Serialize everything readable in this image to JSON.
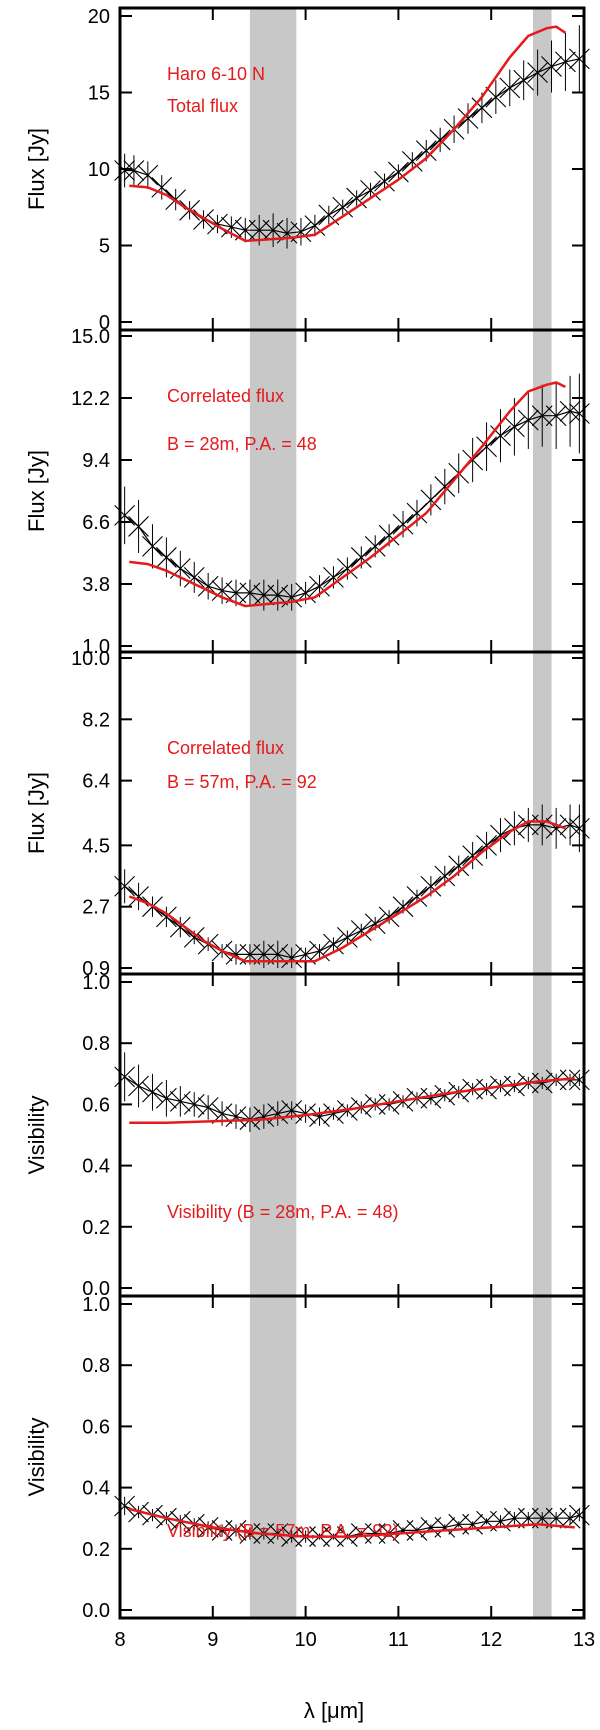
{
  "colors": {
    "model": "#e41a1c",
    "data": "#000000",
    "band": "#c8c8c8"
  },
  "chart_data": {
    "type": "line",
    "x_range": [
      8,
      13
    ],
    "x_ticks": [
      "8",
      "9",
      "10",
      "11",
      "12",
      "13"
    ],
    "xlabel": "λ [μm]",
    "grid": false,
    "shaded_bands": [
      [
        9.4,
        9.9
      ],
      [
        12.45,
        12.65
      ]
    ],
    "panels": [
      {
        "ylabel": "Flux [Jy]",
        "ylim": [
          0,
          20
        ],
        "y_ticks": [
          "0",
          "5",
          "10",
          "15",
          "20"
        ],
        "annotations": [
          "Haro 6-10 N",
          "Total flux"
        ],
        "series": [
          {
            "x": [
              8.05,
              8.15,
              8.3,
              8.45,
              8.6,
              8.75,
              8.9,
              9.05,
              9.2,
              9.35,
              9.5,
              9.65,
              9.8,
              9.95,
              10.1,
              10.25,
              10.4,
              10.55,
              10.7,
              10.85,
              11.0,
              11.15,
              11.3,
              11.45,
              11.6,
              11.75,
              11.9,
              12.05,
              12.2,
              12.35,
              12.5,
              12.65,
              12.8,
              12.95
            ],
            "y": [
              9.9,
              9.9,
              9.6,
              8.8,
              8.0,
              7.3,
              6.7,
              6.4,
              6.2,
              6.0,
              6.0,
              6.0,
              5.8,
              5.9,
              6.3,
              7.0,
              7.5,
              8.1,
              8.6,
              9.2,
              9.8,
              10.5,
              11.2,
              11.9,
              12.6,
              13.3,
              14.0,
              14.7,
              15.3,
              15.8,
              16.3,
              16.7,
              17.0,
              17.2
            ],
            "yerr": [
              1.1,
              1.0,
              0.9,
              0.8,
              0.7,
              0.6,
              0.6,
              0.6,
              0.7,
              0.8,
              1.0,
              1.1,
              1.0,
              0.9,
              0.7,
              0.6,
              0.5,
              0.5,
              0.5,
              0.5,
              0.5,
              0.6,
              0.7,
              0.8,
              0.9,
              1.0,
              1.0,
              1.1,
              1.2,
              1.3,
              1.5,
              1.7,
              1.9,
              2.2
            ]
          },
          {
            "x": [
              8.1,
              8.3,
              8.5,
              8.7,
              8.9,
              9.1,
              9.35,
              9.6,
              9.85,
              10.1,
              10.4,
              10.7,
              11.0,
              11.3,
              11.6,
              11.9,
              12.2,
              12.4,
              12.6,
              12.7,
              12.8
            ],
            "y": [
              8.9,
              8.8,
              8.3,
              7.5,
              6.8,
              6.1,
              5.3,
              5.4,
              5.5,
              5.7,
              6.9,
              8.1,
              9.3,
              10.7,
              12.6,
              14.7,
              17.3,
              18.7,
              19.2,
              19.3,
              18.9
            ]
          }
        ]
      },
      {
        "ylabel": "Flux [Jy]",
        "ylim": [
          1.0,
          15.0
        ],
        "y_ticks": [
          "1.0",
          "3.8",
          "6.6",
          "9.4",
          "12.2",
          "15.0"
        ],
        "annotations": [
          "Correlated flux",
          "B = 28m, P.A. = 48"
        ],
        "series": [
          {
            "x": [
              8.05,
              8.2,
              8.35,
              8.5,
              8.65,
              8.8,
              8.95,
              9.1,
              9.25,
              9.4,
              9.55,
              9.7,
              9.85,
              10.0,
              10.15,
              10.3,
              10.45,
              10.6,
              10.75,
              10.9,
              11.05,
              11.2,
              11.35,
              11.5,
              11.65,
              11.8,
              11.95,
              12.1,
              12.25,
              12.4,
              12.55,
              12.7,
              12.85,
              12.95
            ],
            "y": [
              6.9,
              6.4,
              5.5,
              5.0,
              4.5,
              4.1,
              3.7,
              3.5,
              3.4,
              3.4,
              3.3,
              3.3,
              3.2,
              3.4,
              3.7,
              4.1,
              4.5,
              5.0,
              5.5,
              6.0,
              6.5,
              7.0,
              7.6,
              8.2,
              8.8,
              9.4,
              10.0,
              10.5,
              10.9,
              11.2,
              11.4,
              11.4,
              11.6,
              11.5
            ],
            "yerr": [
              1.3,
              1.2,
              1.0,
              0.9,
              0.8,
              0.7,
              0.6,
              0.6,
              0.6,
              0.6,
              0.7,
              0.7,
              0.6,
              0.5,
              0.5,
              0.5,
              0.5,
              0.5,
              0.5,
              0.5,
              0.6,
              0.6,
              0.7,
              0.8,
              0.9,
              1.0,
              1.1,
              1.2,
              1.3,
              1.3,
              1.4,
              1.5,
              1.6,
              1.8
            ]
          },
          {
            "x": [
              8.1,
              8.3,
              8.5,
              8.7,
              8.9,
              9.1,
              9.35,
              9.6,
              9.85,
              10.1,
              10.4,
              10.7,
              11.0,
              11.3,
              11.6,
              11.9,
              12.2,
              12.4,
              12.6,
              12.7,
              12.8
            ],
            "y": [
              4.8,
              4.7,
              4.4,
              4.0,
              3.6,
              3.2,
              2.8,
              2.9,
              3.0,
              3.2,
              4.1,
              5.0,
              6.0,
              7.0,
              8.5,
              10.0,
              11.6,
              12.5,
              12.8,
              12.9,
              12.7
            ]
          }
        ]
      },
      {
        "ylabel": "Flux [Jy]",
        "ylim": [
          0.9,
          10.0
        ],
        "y_ticks": [
          "0.9",
          "2.7",
          "4.5",
          "6.4",
          "8.2",
          "10.0"
        ],
        "annotations": [
          "Correlated flux",
          "B = 57m, P.A. = 92"
        ],
        "series": [
          {
            "x": [
              8.05,
              8.2,
              8.35,
              8.5,
              8.65,
              8.8,
              8.95,
              9.1,
              9.25,
              9.4,
              9.55,
              9.7,
              9.85,
              10.0,
              10.15,
              10.3,
              10.45,
              10.6,
              10.75,
              10.9,
              11.05,
              11.2,
              11.35,
              11.5,
              11.65,
              11.8,
              11.95,
              12.1,
              12.25,
              12.4,
              12.55,
              12.7,
              12.85,
              12.95
            ],
            "y": [
              3.3,
              3.0,
              2.7,
              2.4,
              2.1,
              1.8,
              1.6,
              1.4,
              1.3,
              1.3,
              1.3,
              1.3,
              1.2,
              1.3,
              1.4,
              1.6,
              1.8,
              2.0,
              2.2,
              2.4,
              2.7,
              3.0,
              3.3,
              3.6,
              3.9,
              4.2,
              4.5,
              4.8,
              5.0,
              5.1,
              5.1,
              5.0,
              5.1,
              5.0
            ],
            "yerr": [
              0.5,
              0.4,
              0.3,
              0.3,
              0.3,
              0.2,
              0.2,
              0.2,
              0.3,
              0.3,
              0.4,
              0.4,
              0.3,
              0.2,
              0.2,
              0.2,
              0.2,
              0.2,
              0.2,
              0.2,
              0.2,
              0.2,
              0.3,
              0.3,
              0.3,
              0.4,
              0.4,
              0.5,
              0.5,
              0.5,
              0.6,
              0.6,
              0.6,
              0.7
            ]
          },
          {
            "x": [
              8.1,
              8.3,
              8.5,
              8.7,
              8.9,
              9.1,
              9.35,
              9.6,
              9.85,
              10.1,
              10.4,
              10.7,
              11.0,
              11.3,
              11.6,
              11.9,
              12.2,
              12.4,
              12.6,
              12.7,
              12.8
            ],
            "y": [
              3.0,
              2.8,
              2.5,
              2.1,
              1.7,
              1.4,
              1.1,
              1.1,
              1.1,
              1.1,
              1.5,
              2.0,
              2.5,
              3.0,
              3.6,
              4.3,
              4.9,
              5.2,
              5.2,
              5.1,
              5.0
            ]
          }
        ]
      },
      {
        "ylabel": "Visibility",
        "ylim": [
          0.0,
          1.0
        ],
        "y_ticks": [
          "0.0",
          "0.2",
          "0.4",
          "0.6",
          "0.8",
          "1.0"
        ],
        "annotations": [
          "Visibility (B = 28m, P.A. = 48)"
        ],
        "series": [
          {
            "x": [
              8.05,
              8.2,
              8.35,
              8.5,
              8.65,
              8.8,
              8.95,
              9.1,
              9.25,
              9.4,
              9.55,
              9.7,
              9.85,
              10.0,
              10.15,
              10.3,
              10.45,
              10.6,
              10.75,
              10.9,
              11.05,
              11.2,
              11.35,
              11.5,
              11.65,
              11.8,
              11.95,
              12.1,
              12.25,
              12.4,
              12.55,
              12.7,
              12.85,
              12.95
            ],
            "y": [
              0.69,
              0.66,
              0.64,
              0.62,
              0.61,
              0.6,
              0.59,
              0.57,
              0.56,
              0.55,
              0.56,
              0.57,
              0.58,
              0.57,
              0.56,
              0.57,
              0.58,
              0.59,
              0.6,
              0.6,
              0.61,
              0.62,
              0.62,
              0.63,
              0.64,
              0.65,
              0.65,
              0.66,
              0.66,
              0.67,
              0.67,
              0.68,
              0.68,
              0.68
            ],
            "yerr": [
              0.08,
              0.07,
              0.06,
              0.06,
              0.05,
              0.04,
              0.04,
              0.04,
              0.04,
              0.04,
              0.04,
              0.04,
              0.03,
              0.03,
              0.03,
              0.02,
              0.02,
              0.02,
              0.02,
              0.02,
              0.02,
              0.02,
              0.02,
              0.02,
              0.02,
              0.02,
              0.02,
              0.02,
              0.02,
              0.02,
              0.02,
              0.02,
              0.02,
              0.02
            ]
          },
          {
            "x": [
              8.1,
              8.5,
              9.0,
              9.5,
              10.0,
              10.5,
              11.0,
              11.5,
              12.0,
              12.5,
              12.9
            ],
            "y": [
              0.54,
              0.54,
              0.545,
              0.55,
              0.565,
              0.585,
              0.61,
              0.635,
              0.655,
              0.675,
              0.685
            ]
          }
        ]
      },
      {
        "ylabel": "Visibility",
        "ylim": [
          0.0,
          1.0
        ],
        "y_ticks": [
          "0.0",
          "0.2",
          "0.4",
          "0.6",
          "0.8",
          "1.0"
        ],
        "annotations": [
          "Visibility (B = 57m, P.A. = 92)"
        ],
        "series": [
          {
            "x": [
              8.05,
              8.2,
              8.35,
              8.5,
              8.65,
              8.8,
              8.95,
              9.1,
              9.25,
              9.4,
              9.55,
              9.7,
              9.85,
              10.0,
              10.15,
              10.3,
              10.45,
              10.6,
              10.75,
              10.9,
              11.05,
              11.2,
              11.35,
              11.5,
              11.65,
              11.8,
              11.95,
              12.1,
              12.25,
              12.4,
              12.55,
              12.7,
              12.85,
              12.95
            ],
            "y": [
              0.34,
              0.32,
              0.31,
              0.3,
              0.29,
              0.28,
              0.27,
              0.26,
              0.26,
              0.25,
              0.25,
              0.25,
              0.24,
              0.24,
              0.24,
              0.24,
              0.24,
              0.25,
              0.25,
              0.25,
              0.26,
              0.26,
              0.27,
              0.27,
              0.28,
              0.28,
              0.29,
              0.29,
              0.3,
              0.3,
              0.3,
              0.3,
              0.3,
              0.31
            ],
            "yerr": [
              0.03,
              0.02,
              0.02,
              0.02,
              0.02,
              0.02,
              0.02,
              0.02,
              0.02,
              0.02,
              0.02,
              0.02,
              0.02,
              0.02,
              0.01,
              0.01,
              0.01,
              0.01,
              0.01,
              0.01,
              0.01,
              0.01,
              0.01,
              0.01,
              0.01,
              0.01,
              0.01,
              0.02,
              0.02,
              0.02,
              0.02,
              0.02,
              0.02,
              0.02
            ]
          },
          {
            "x": [
              8.1,
              8.5,
              9.0,
              9.5,
              10.0,
              10.5,
              11.0,
              11.5,
              12.0,
              12.5,
              12.9
            ],
            "y": [
              0.33,
              0.3,
              0.27,
              0.25,
              0.24,
              0.24,
              0.25,
              0.26,
              0.27,
              0.28,
              0.27
            ]
          }
        ]
      }
    ]
  }
}
